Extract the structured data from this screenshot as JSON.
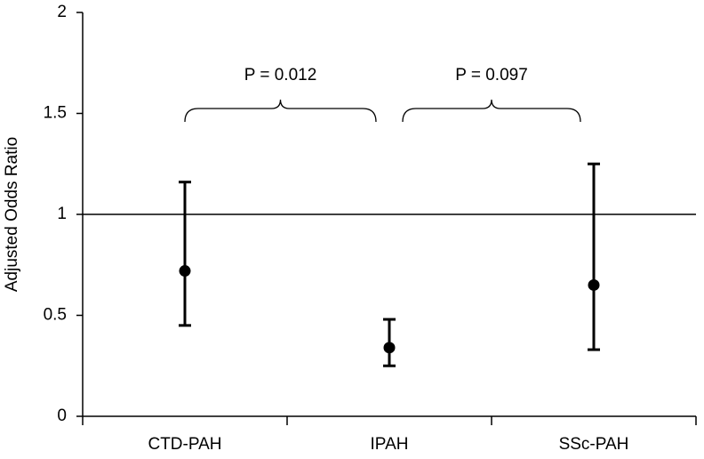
{
  "chart_data": {
    "type": "errorbar",
    "y_label": "Adjusted Odds Ratio",
    "categories": [
      "CTD-PAH",
      "IPAH",
      "SSc-PAH"
    ],
    "values": [
      0.72,
      0.34,
      0.65
    ],
    "lower": [
      0.45,
      0.25,
      0.33
    ],
    "upper": [
      1.16,
      0.48,
      1.25
    ],
    "color": "#000000",
    "reference_line": 1,
    "annotations": [
      "P = 0.012",
      "P = 0.097"
    ],
    "ylim": [
      0,
      2
    ],
    "yticks": [
      0,
      0.5,
      1,
      1.5,
      2
    ]
  }
}
